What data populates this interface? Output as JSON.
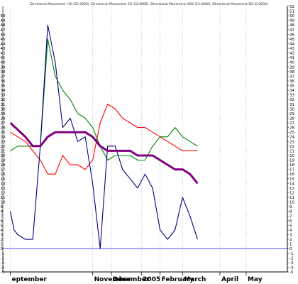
{
  "chart_data": {
    "type": "line",
    "title": "Directional Movement +DI (22.0000), Directional Movement -DI (22.0000), Directional Movement ADX (14.0000), Directional Movement DX (0.0000)",
    "xlabel": "",
    "ylabel": "",
    "ylim": [
      -5,
      52
    ],
    "y_ticks": [
      -5,
      -4,
      -3,
      -2,
      -1,
      0,
      1,
      2,
      3,
      4,
      5,
      6,
      7,
      8,
      9,
      10,
      11,
      12,
      13,
      14,
      15,
      16,
      17,
      18,
      19,
      20,
      21,
      22,
      23,
      24,
      25,
      26,
      27,
      28,
      29,
      30,
      31,
      32,
      33,
      34,
      35,
      36,
      37,
      38,
      39,
      40,
      41,
      42,
      43,
      44,
      45,
      46,
      47,
      48,
      49,
      50,
      51,
      52
    ],
    "x_labels": [
      {
        "label": "eptember",
        "x": 0
      },
      {
        "label": "November",
        "x": 22
      },
      {
        "label": "December",
        "x": 27
      },
      {
        "label": "2005",
        "x": 35
      },
      {
        "label": "February",
        "x": 40
      },
      {
        "label": "March",
        "x": 46
      },
      {
        "label": "April",
        "x": 56
      },
      {
        "label": "May",
        "x": 63
      }
    ],
    "x_range": [
      -2,
      74
    ],
    "grid": "vertical-dotted",
    "reference_line": 0,
    "series": [
      {
        "color": "#ff0000",
        "x": [
          0,
          2,
          4,
          6,
          8,
          10,
          12,
          14,
          16,
          18,
          20,
          22,
          24,
          26,
          28,
          30,
          32,
          34,
          36,
          38,
          40,
          42,
          44,
          46,
          48,
          50
        ],
        "values": [
          25,
          24,
          23,
          21,
          19,
          16,
          16,
          20,
          18,
          18,
          17,
          19,
          27,
          31,
          30,
          28,
          27,
          26,
          26,
          25,
          24,
          23,
          22,
          21,
          21,
          21
        ]
      },
      {
        "color": "#008000",
        "x": [
          0,
          2,
          4,
          6,
          8,
          10,
          12,
          14,
          16,
          18,
          20,
          22,
          24,
          26,
          28,
          30,
          32,
          34,
          36,
          38,
          40,
          42,
          44,
          46,
          48,
          50
        ],
        "values": [
          21,
          22,
          22,
          22,
          22,
          45,
          37,
          34,
          32,
          29,
          28,
          26,
          22,
          19,
          20,
          20,
          20,
          19,
          19,
          22,
          24,
          24,
          26,
          24,
          23,
          22
        ]
      },
      {
        "color": "#000080",
        "x": [
          0,
          1,
          2,
          4,
          6,
          8,
          10,
          12,
          14,
          16,
          18,
          20,
          22,
          24,
          26,
          27,
          28,
          30,
          32,
          34,
          36,
          38,
          40,
          42,
          44,
          46,
          48,
          50
        ],
        "values": [
          8,
          4,
          3,
          2,
          2,
          22,
          48,
          40,
          26,
          28,
          23,
          24,
          14,
          0,
          22,
          22,
          22,
          17,
          15,
          13,
          16,
          13,
          4,
          2,
          4,
          11,
          7,
          2
        ]
      },
      {
        "color": "#800080",
        "x": [
          0,
          4,
          6,
          8,
          10,
          12,
          14,
          16,
          18,
          20,
          22,
          24,
          26,
          28,
          30,
          32,
          34,
          36,
          38,
          40,
          42,
          44,
          46,
          48,
          50
        ],
        "values": [
          27,
          24,
          22,
          22,
          24,
          25,
          25,
          25,
          25,
          25,
          24,
          22,
          21,
          21,
          21,
          21,
          20,
          20,
          20,
          19,
          18,
          17,
          17,
          16,
          14
        ]
      }
    ]
  }
}
